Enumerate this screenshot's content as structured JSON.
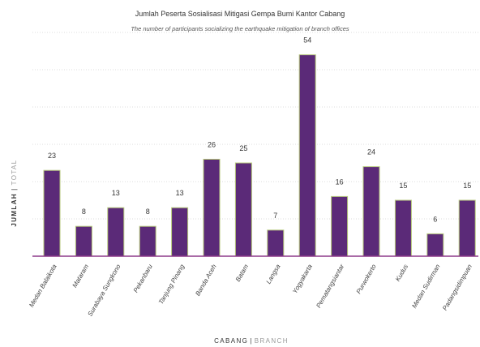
{
  "chart_data": {
    "type": "bar",
    "title": "Jumlah Peserta Sosialisasi Mitigasi Gempa Bumi Kantor Cabang",
    "subtitle": "The number of participants socializing the earthquake mitigation of branch offices",
    "xlabel_main": "CABANG",
    "xlabel_sep": "|",
    "xlabel_sub": "BRANCH",
    "ylabel_main": "JUMLAH",
    "ylabel_sep": "|",
    "ylabel_sub": "TOTAL",
    "categories": [
      "Medan Balaikota",
      "Mataram",
      "Surabaya Sungkono",
      "Pekanbaru",
      "Tanjung Pinang",
      "Banda Aceh",
      "Batam",
      "Langsa",
      "Yogyakarta",
      "Pematangsiantar",
      "Purwokerto",
      "Kudus",
      "Medan Sudirman",
      "Padangsidimpuan"
    ],
    "values": [
      23,
      8,
      13,
      8,
      13,
      26,
      25,
      7,
      54,
      16,
      24,
      15,
      6,
      15
    ],
    "ylim": [
      0,
      60
    ],
    "grid": true,
    "legend": "none",
    "colors": {
      "bar_fill": "#5b2a78",
      "bar_outline": "#b5c77a",
      "baseline": "#8e3a8a",
      "grid": "#dddddd",
      "ylabel_main": "#333333",
      "label_muted": "#999999"
    }
  }
}
